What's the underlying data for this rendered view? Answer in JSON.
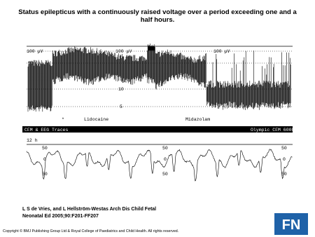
{
  "title": "Status epilepticus with a continuously raised voltage over a period exceeding one and a half hours.",
  "figure": {
    "top_panel_labels": [
      "100 μV",
      "100 μV",
      "100 μV",
      "50",
      "10",
      "5"
    ],
    "annotations": [
      "*",
      "Lidocaine",
      "Midazolam"
    ],
    "banner": [
      "CFM & EEG Traces",
      "Olympic CFM 6000"
    ],
    "time_label": "12 h",
    "bottom_panel_labels": [
      "50",
      "0",
      "50",
      "50",
      "0",
      "50",
      "50",
      "0",
      "50"
    ]
  },
  "citation": [
    "L S de Vries, and L Hellström-Westas Arch Dis Child Fetal",
    "Neonatal Ed 2005;90:F201-FF207"
  ],
  "copyright": "Copyright © BMJ Publishing Group Ltd & Royal College of Paediatrics and Child Health. All rights reserved.",
  "logo": "FN"
}
